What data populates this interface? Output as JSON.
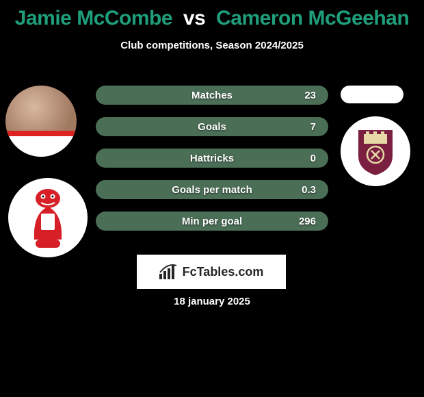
{
  "title": {
    "player1": "Jamie McCombe",
    "vs": "vs",
    "player2": "Cameron McGeehan",
    "player1_color": "#1e9e7a",
    "player2_color": "#1e9e7a",
    "vs_color": "#ffffff"
  },
  "subtitle": "Club competitions, Season 2024/2025",
  "stats": {
    "row_bg": "#4b6e56",
    "label_color": "#ffffff",
    "value_color": "#ffffff",
    "rows": [
      {
        "label": "Matches",
        "value": "23"
      },
      {
        "label": "Goals",
        "value": "7"
      },
      {
        "label": "Hattricks",
        "value": "0"
      },
      {
        "label": "Goals per match",
        "value": "0.3"
      },
      {
        "label": "Min per goal",
        "value": "296"
      }
    ]
  },
  "brand": {
    "text": "FcTables.com"
  },
  "date": "18 january 2025",
  "colors": {
    "background": "#000000",
    "badge1_primary": "#d61f26",
    "badge2_primary": "#7a1f3f"
  }
}
